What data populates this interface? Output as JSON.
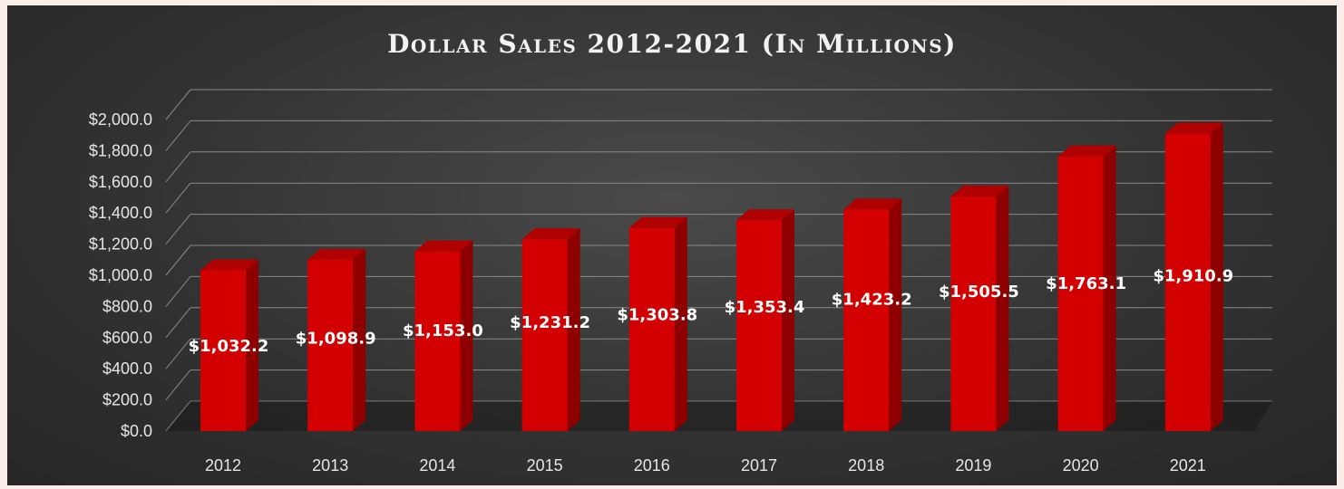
{
  "chart_data": {
    "type": "bar",
    "title": "Dollar Sales 2012-2021 (In Millions)",
    "categories": [
      "2012",
      "2013",
      "2014",
      "2015",
      "2016",
      "2017",
      "2018",
      "2019",
      "2020",
      "2021"
    ],
    "values": [
      1032.2,
      1098.9,
      1153.0,
      1231.2,
      1303.8,
      1353.4,
      1423.2,
      1505.5,
      1763.1,
      1910.9
    ],
    "data_labels": [
      "$1,032.2",
      "$1,098.9",
      "$1,153.0",
      "$1,231.2",
      "$1,303.8",
      "$1,353.4",
      "$1,423.2",
      "$1,505.5",
      "$1,763.1",
      "$1,910.9"
    ],
    "y_ticks": [
      "$0.0",
      "$200.0",
      "$400.0",
      "$600.0",
      "$800.0",
      "$1,000.0",
      "$1,200.0",
      "$1,400.0",
      "$1,600.0",
      "$1,800.0",
      "$2,000.0"
    ],
    "ylim": [
      0,
      2000
    ],
    "xlabel": "",
    "ylabel": "",
    "grid": true,
    "legend": "none",
    "style": "3d-column",
    "colors": {
      "bar_front": "#d20000",
      "bar_side": "#8e0000",
      "bar_top": "#b00000",
      "background": "#333333",
      "gridline": "#8a8a8a",
      "text": "#e6e6e6"
    }
  }
}
